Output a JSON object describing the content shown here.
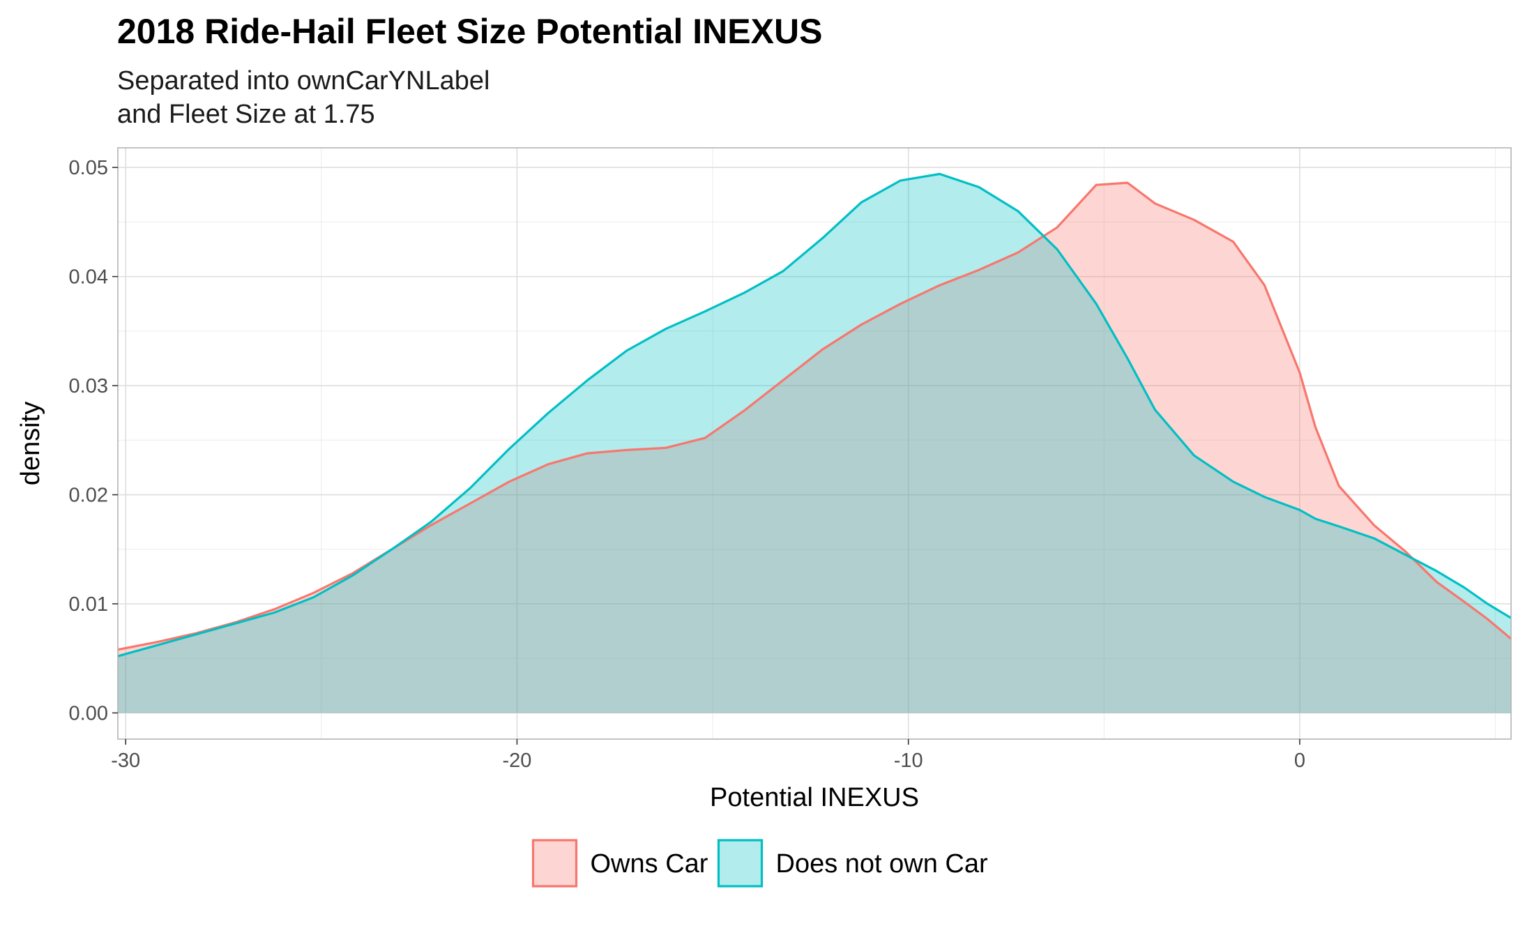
{
  "chart_data": {
    "type": "area",
    "title": "2018 Ride-Hail Fleet Size Potential INEXUS",
    "subtitle_lines": [
      "Separated into ownCarYNLabel",
      "and Fleet Size at 1.75"
    ],
    "xlabel": "Potential INEXUS",
    "ylabel": "density",
    "xlim": [
      -30.2,
      5.4
    ],
    "ylim": [
      -0.0024,
      0.0518
    ],
    "x_ticks": [
      -30,
      -20,
      -10,
      0
    ],
    "x_tick_labels": [
      "-30",
      "-20",
      "-10",
      "0"
    ],
    "y_ticks": [
      0,
      0.01,
      0.02,
      0.03,
      0.04,
      0.05
    ],
    "y_tick_labels": [
      "0.00",
      "0.01",
      "0.02",
      "0.03",
      "0.04",
      "0.05"
    ],
    "grid": true,
    "legend_position": "bottom",
    "series": [
      {
        "name": "Owns Car",
        "line_color": "#F8766D",
        "fill_color": "#F8766D",
        "fill_opacity": 0.3,
        "x": [
          -30.2,
          -29.2,
          -28.2,
          -27.2,
          -26.2,
          -25.2,
          -24.2,
          -23.2,
          -22.2,
          -21.2,
          -20.2,
          -19.2,
          -18.2,
          -17.2,
          -16.2,
          -15.2,
          -14.2,
          -13.2,
          -12.2,
          -11.2,
          -10.2,
          -9.2,
          -8.2,
          -7.2,
          -6.2,
          -5.2,
          -4.4,
          -3.7,
          -2.7,
          -1.7,
          -0.9,
          0.0,
          0.4,
          1.0,
          1.9,
          2.7,
          3.5,
          4.2,
          4.8,
          5.4
        ],
        "y": [
          0.0058,
          0.0065,
          0.0073,
          0.0083,
          0.0095,
          0.011,
          0.0128,
          0.015,
          0.0172,
          0.0192,
          0.0212,
          0.0228,
          0.0238,
          0.0241,
          0.0243,
          0.0252,
          0.0277,
          0.0305,
          0.0333,
          0.0356,
          0.0375,
          0.0392,
          0.0406,
          0.0422,
          0.0445,
          0.0484,
          0.0486,
          0.0467,
          0.0452,
          0.0432,
          0.0392,
          0.0312,
          0.0262,
          0.0208,
          0.0172,
          0.0148,
          0.012,
          0.0102,
          0.0086,
          0.0068
        ]
      },
      {
        "name": "Does not own Car",
        "line_color": "#00BFC4",
        "fill_color": "#00BFC4",
        "fill_opacity": 0.3,
        "x": [
          -30.2,
          -29.2,
          -28.2,
          -27.2,
          -26.2,
          -25.2,
          -24.2,
          -23.2,
          -22.2,
          -21.2,
          -20.2,
          -19.2,
          -18.2,
          -17.2,
          -16.2,
          -15.2,
          -14.2,
          -13.2,
          -12.2,
          -11.2,
          -10.2,
          -9.2,
          -8.2,
          -7.2,
          -6.2,
          -5.2,
          -4.4,
          -3.7,
          -2.7,
          -1.7,
          -0.9,
          0.0,
          0.4,
          1.0,
          1.9,
          2.7,
          3.5,
          4.2,
          4.8,
          5.4
        ],
        "y": [
          0.0052,
          0.0062,
          0.0072,
          0.0082,
          0.0092,
          0.0106,
          0.0126,
          0.015,
          0.0175,
          0.0206,
          0.0242,
          0.0275,
          0.0305,
          0.0332,
          0.0352,
          0.0368,
          0.0385,
          0.0405,
          0.0435,
          0.0468,
          0.0488,
          0.0494,
          0.0482,
          0.046,
          0.0425,
          0.0375,
          0.0325,
          0.0278,
          0.0236,
          0.0212,
          0.0198,
          0.0186,
          0.0178,
          0.0171,
          0.016,
          0.0145,
          0.013,
          0.0115,
          0.01,
          0.0087
        ]
      }
    ]
  }
}
